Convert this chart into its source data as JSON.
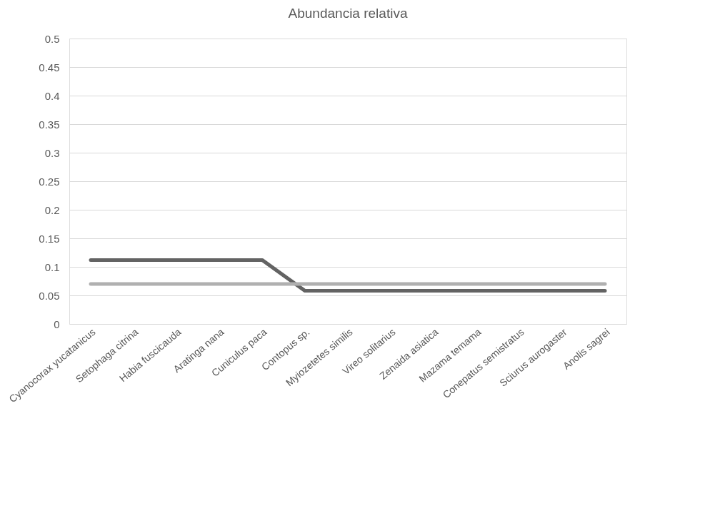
{
  "chart_data": {
    "type": "line",
    "title": "Abundancia relativa",
    "categories": [
      "Cyanocorax yucatanicus",
      "Setophaga citrina",
      "Habia fuscicauda",
      "Aratinga nana",
      "Cuniculus paca",
      "Contopus sp.",
      "Myiozetetes similis",
      "Vireo solitarius",
      "Zenaida asiatica",
      "Mazama temama",
      "Conepatus semistratus",
      "Sciurus aurogaster",
      "Anolis sagrei"
    ],
    "series": [
      {
        "color": "#636363",
        "values": [
          0.112,
          0.112,
          0.112,
          0.112,
          0.112,
          0.058,
          0.058,
          0.058,
          0.058,
          0.058,
          0.058,
          0.058,
          0.058
        ]
      },
      {
        "color": "#b0b0b0",
        "values": [
          0.07,
          0.07,
          0.07,
          0.07,
          0.07,
          0.07,
          0.07,
          0.07,
          0.07,
          0.07,
          0.07,
          0.07,
          0.07
        ]
      }
    ],
    "ylim": [
      0,
      0.5
    ],
    "yticks": [
      0,
      0.05,
      0.1,
      0.15,
      0.2,
      0.25,
      0.3,
      0.35,
      0.4,
      0.45,
      0.5
    ],
    "grid": "y",
    "legend": false,
    "marker": "none",
    "line_style": "solid"
  }
}
